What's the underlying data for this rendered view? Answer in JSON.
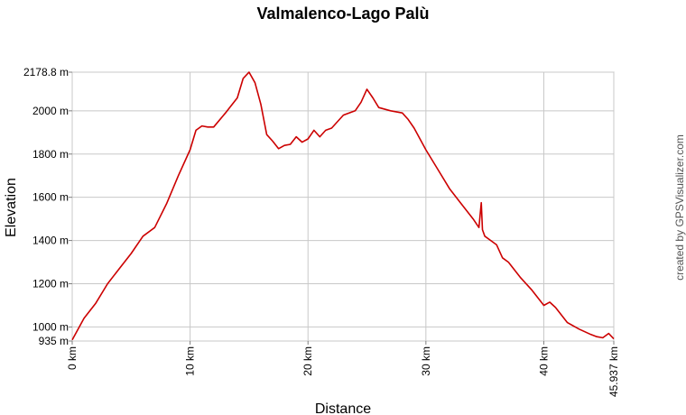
{
  "chart_data": {
    "type": "line",
    "title": "Valmalenco-Lago Palù",
    "xlabel": "Distance",
    "ylabel": "Elevation",
    "credit": "created by GPSVisualizer.com",
    "xlim": [
      0,
      45.937
    ],
    "ylim": [
      935,
      2178.8
    ],
    "grid": true,
    "x_ticks": [
      {
        "value": 0,
        "label": "0 km"
      },
      {
        "value": 10,
        "label": "10 km"
      },
      {
        "value": 20,
        "label": "20 km"
      },
      {
        "value": 30,
        "label": "30 km"
      },
      {
        "value": 40,
        "label": "40 km"
      },
      {
        "value": 45.937,
        "label": "45.937 km"
      }
    ],
    "y_ticks": [
      {
        "value": 935,
        "label": "935 m"
      },
      {
        "value": 1000,
        "label": "1000 m"
      },
      {
        "value": 1200,
        "label": "1200 m"
      },
      {
        "value": 1400,
        "label": "1400 m"
      },
      {
        "value": 1600,
        "label": "1600 m"
      },
      {
        "value": 1800,
        "label": "1800 m"
      },
      {
        "value": 2000,
        "label": "2000 m"
      },
      {
        "value": 2178.8,
        "label": "2178.8 m"
      }
    ],
    "series": [
      {
        "color": "#cc0000",
        "x": [
          0,
          1,
          2,
          3,
          4,
          5,
          6,
          7,
          8,
          9,
          10,
          10.5,
          11,
          11.5,
          12,
          13,
          14,
          14.5,
          15,
          15.5,
          16,
          16.5,
          17,
          17.5,
          18,
          18.5,
          19,
          19.5,
          20,
          20.5,
          21,
          21.5,
          22,
          23,
          24,
          24.5,
          25,
          25.5,
          26,
          27,
          28,
          28.5,
          29,
          30,
          31,
          32,
          33,
          34,
          34.5,
          34.7,
          34.8,
          35,
          35.5,
          36,
          36.5,
          37,
          38,
          39,
          40,
          40.5,
          41,
          42,
          43,
          44,
          44.5,
          45,
          45.5,
          45.937
        ],
        "y": [
          940,
          1040,
          1110,
          1200,
          1270,
          1340,
          1420,
          1460,
          1570,
          1700,
          1820,
          1910,
          1930,
          1925,
          1925,
          1990,
          2060,
          2150,
          2178.8,
          2130,
          2030,
          1890,
          1860,
          1825,
          1840,
          1845,
          1880,
          1855,
          1870,
          1910,
          1880,
          1910,
          1920,
          1980,
          2000,
          2040,
          2100,
          2060,
          2015,
          2000,
          1990,
          1960,
          1920,
          1820,
          1730,
          1640,
          1570,
          1500,
          1460,
          1575,
          1450,
          1420,
          1400,
          1380,
          1320,
          1300,
          1230,
          1170,
          1100,
          1115,
          1090,
          1020,
          990,
          965,
          955,
          950,
          970,
          945
        ]
      }
    ]
  }
}
